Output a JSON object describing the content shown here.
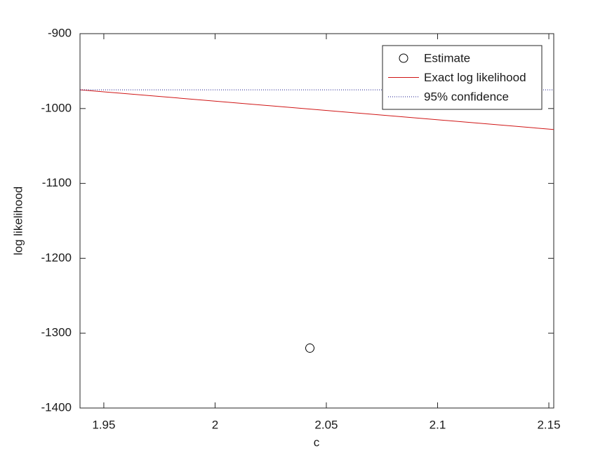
{
  "chart_data": {
    "type": "line",
    "xlabel": "c",
    "ylabel": "log likelihood",
    "xlim": [
      1.9393,
      2.1522
    ],
    "ylim": [
      -1400,
      -900
    ],
    "xticks": [
      1.95,
      2,
      2.05,
      2.1,
      2.15
    ],
    "yticks": [
      -1400,
      -1300,
      -1200,
      -1100,
      -1000,
      -900
    ],
    "legend": "upper right",
    "series": [
      {
        "name": "Estimate",
        "color": "#000000",
        "style": "marker",
        "x": [
          2.0426
        ],
        "values": [
          -1320
        ]
      },
      {
        "name": "Exact log likelihood",
        "color": "#d01515",
        "style": "solid",
        "x": [
          1.9393,
          2.1522
        ],
        "values": [
          -975,
          -1028
        ]
      },
      {
        "name": "95% confidence",
        "color": "#1a1a8c",
        "style": "dotted",
        "x": [
          1.9393,
          2.1522
        ],
        "values": [
          -975,
          -975
        ]
      }
    ]
  }
}
